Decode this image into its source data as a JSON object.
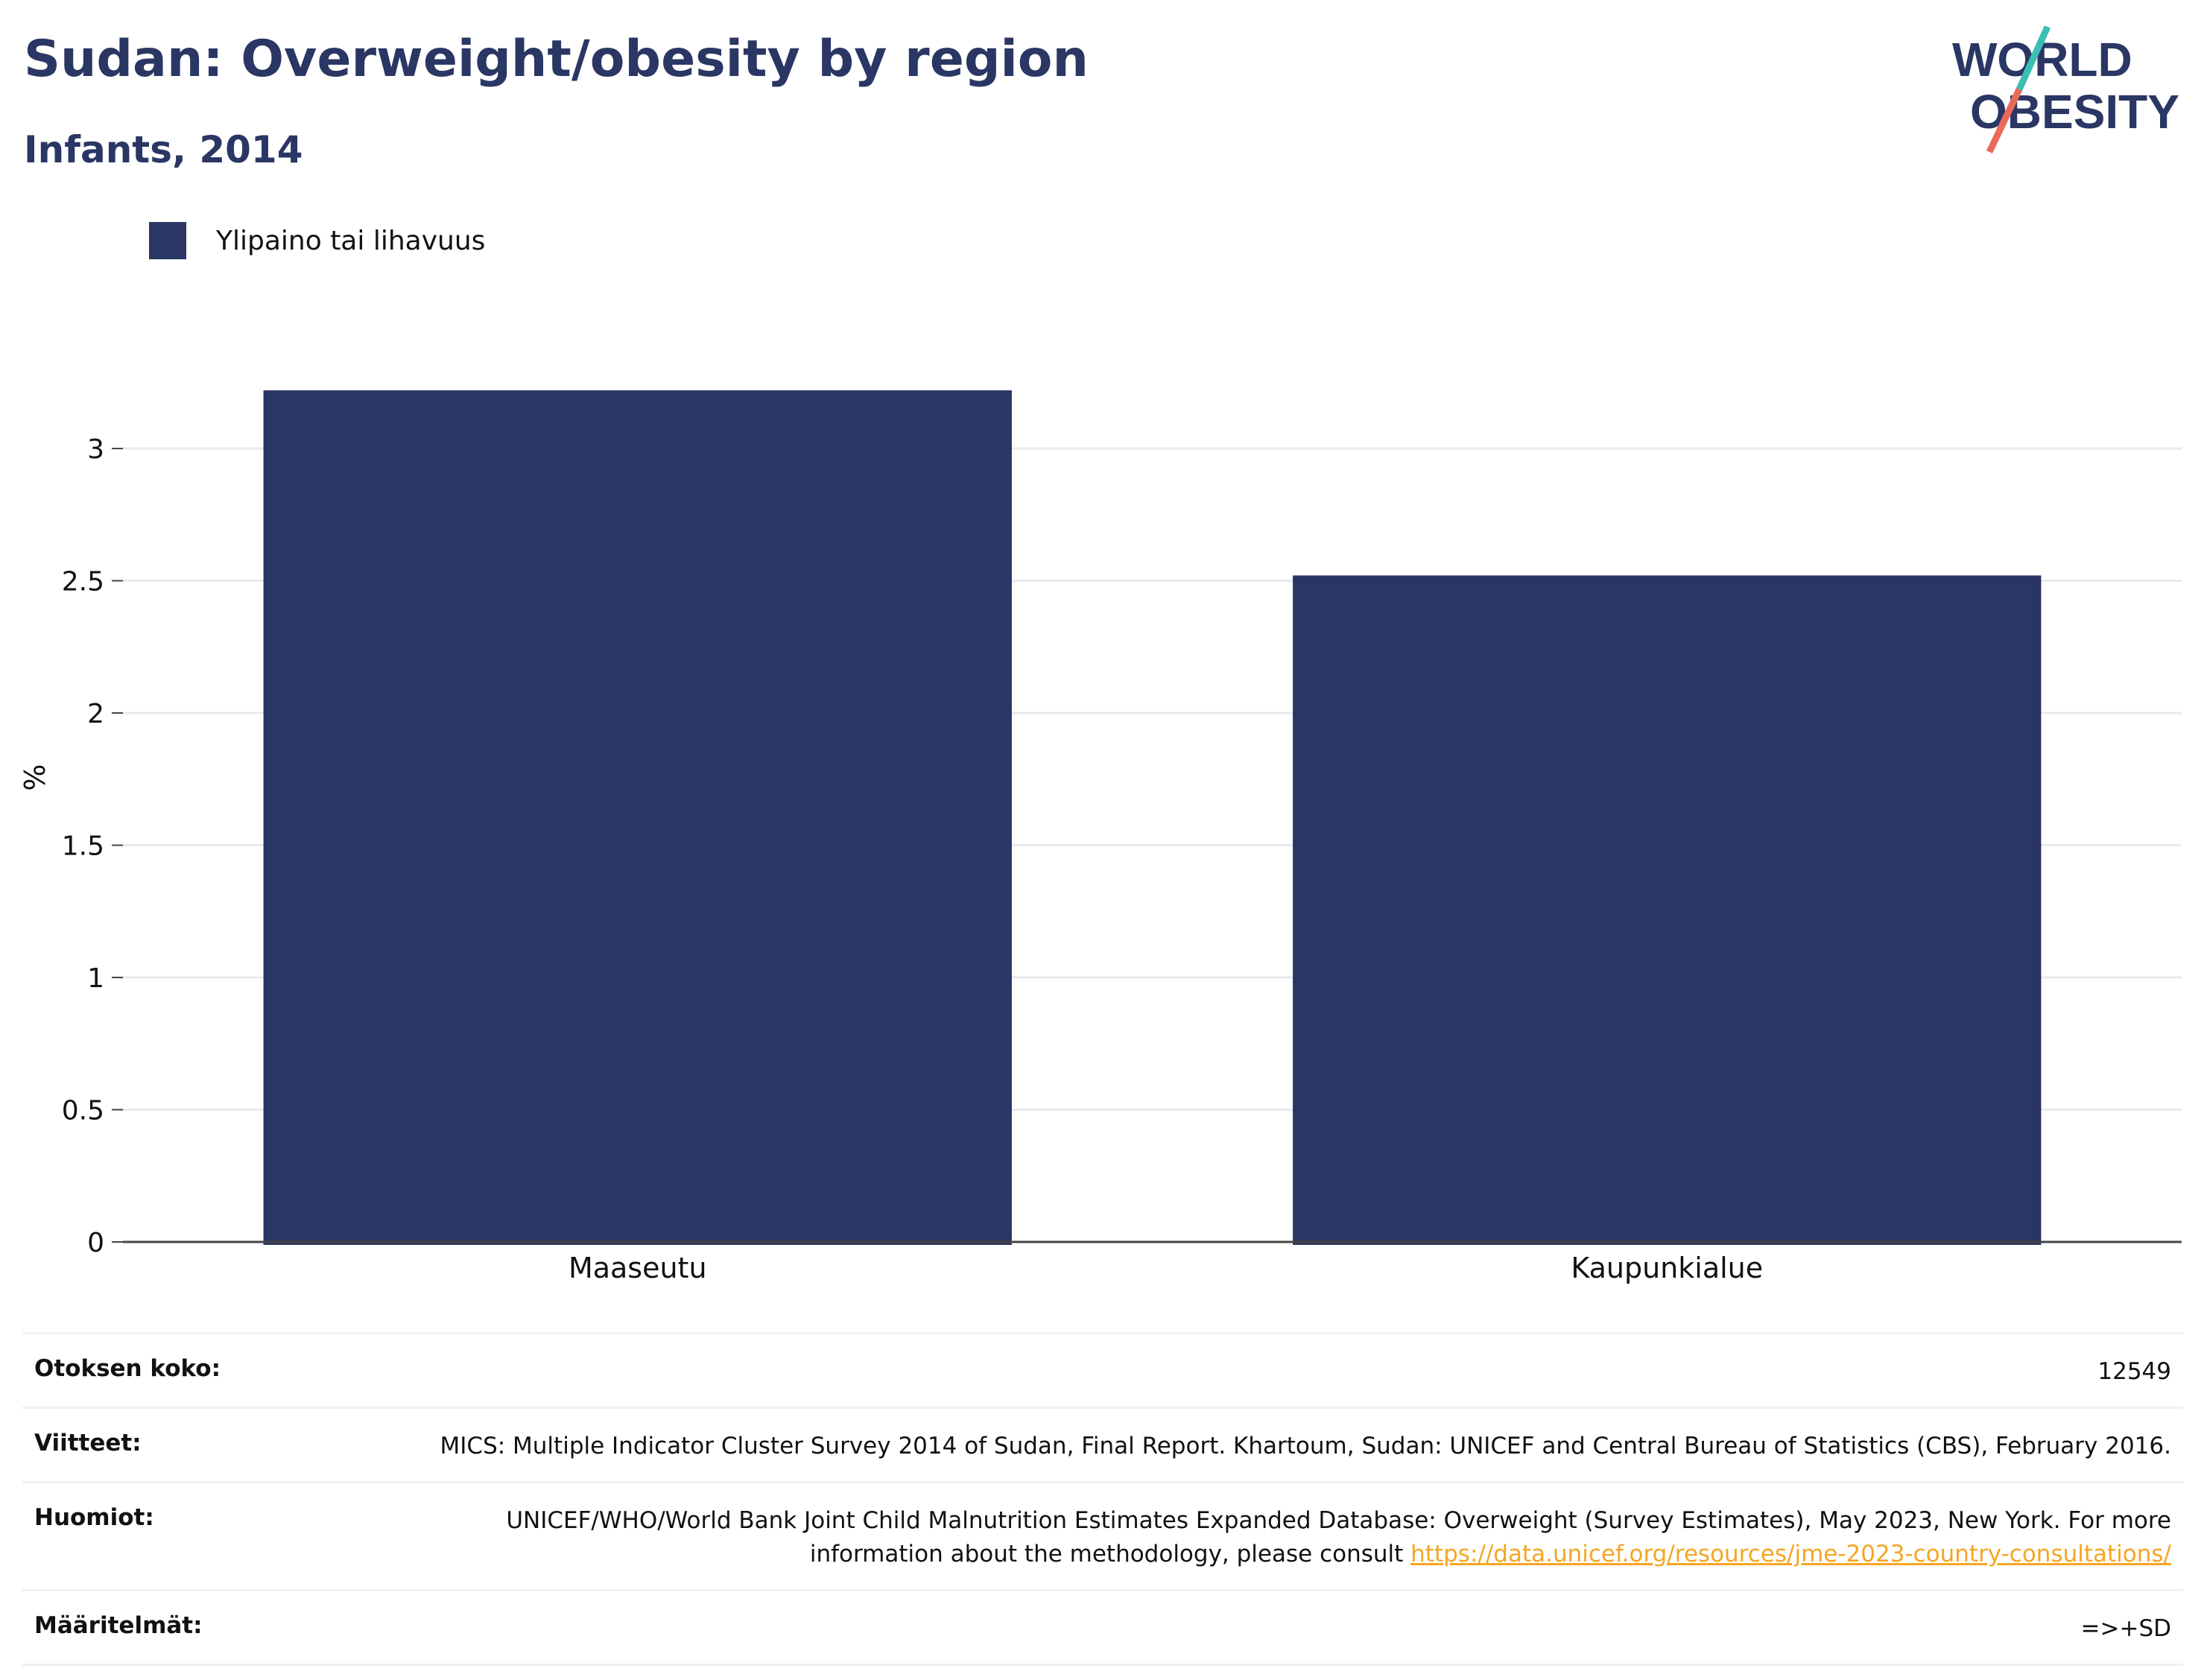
{
  "header": {
    "title": "Sudan: Overweight/obesity by region",
    "subtitle": "Infants, 2014",
    "logo_line1": "WORLD",
    "logo_line2": "OBESITY"
  },
  "colors": {
    "bar": "#2a3663",
    "title": "#2a3663",
    "logo_teal": "#3bbfb4",
    "logo_coral": "#ea6a5a",
    "link": "#f5a623"
  },
  "legend": {
    "label": "Ylipaino tai lihavuus"
  },
  "chart_data": {
    "type": "bar",
    "categories": [
      "Maaseutu",
      "Kaupunkialue"
    ],
    "series": [
      {
        "name": "Ylipaino tai lihavuus",
        "values": [
          3.22,
          2.52
        ]
      }
    ],
    "ylabel": "%",
    "ylim": [
      0,
      3.4
    ],
    "yticks": [
      0,
      0.5,
      1,
      1.5,
      2,
      2.5,
      3
    ],
    "ytick_labels": [
      "0",
      "0.5",
      "1",
      "1.5",
      "2",
      "2.5",
      "3"
    ],
    "grid": true,
    "legend_position": "top-left"
  },
  "footer": {
    "sample_label": "Otoksen koko:",
    "sample_value": "12549",
    "refs_label": "Viitteet:",
    "refs_value": "MICS: Multiple Indicator Cluster Survey 2014 of Sudan, Final Report. Khartoum, Sudan: UNICEF and Central Bureau of Statistics (CBS), February 2016.",
    "notes_label": "Huomiot:",
    "notes_text": "UNICEF/WHO/World Bank Joint Child Malnutrition Estimates Expanded Database: Overweight (Survey Estimates), May 2023, New York. For more information about the methodology, please consult ",
    "notes_link": "https://data.unicef.org/resources/jme-2023-country-consultations/",
    "defs_label": "Määritelmät:",
    "defs_value": "=>+SD"
  }
}
